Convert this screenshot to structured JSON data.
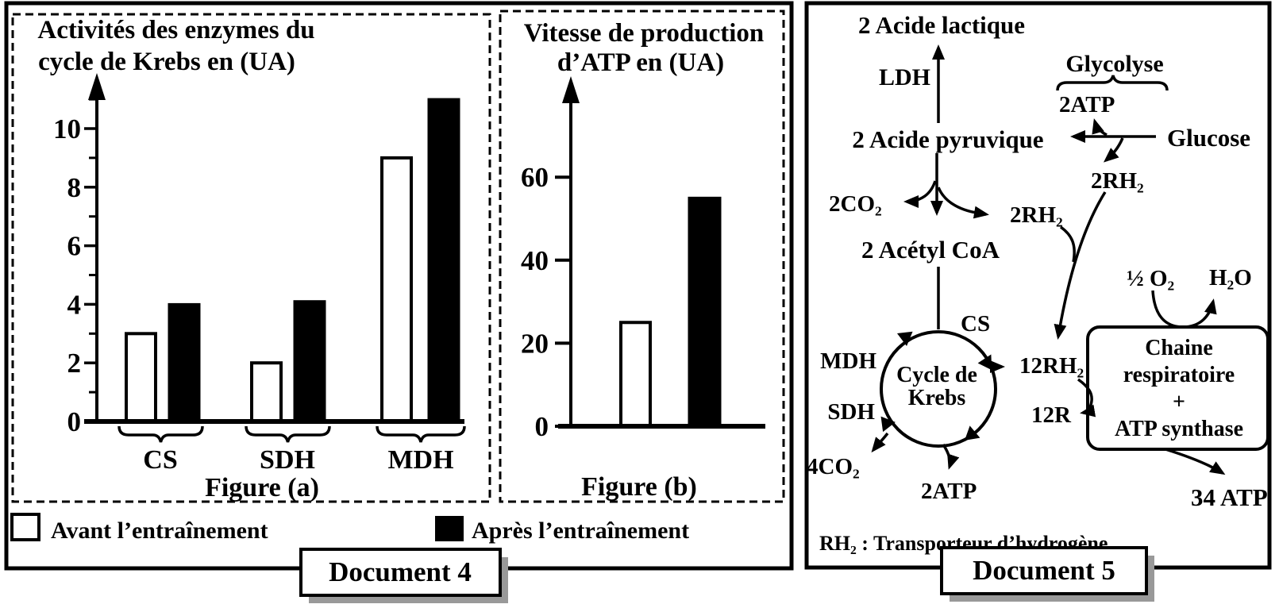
{
  "doc4": {
    "label": "Document 4",
    "legend": {
      "before": "Avant l’entraînement",
      "after": "Après l’entraînement"
    }
  },
  "chart_data": [
    {
      "id": "figure_a",
      "type": "bar",
      "title": "Activités des enzymes du cycle de Krebs en (UA)",
      "title_lines": [
        "Activités des enzymes du",
        "cycle de Krebs en (UA)"
      ],
      "caption": "Figure (a)",
      "categories": [
        "CS",
        "SDH",
        "MDH"
      ],
      "series": [
        {
          "name": "Avant l’entraînement",
          "fill": "white",
          "values": [
            3,
            2,
            9
          ]
        },
        {
          "name": "Après l’entraînement",
          "fill": "black",
          "values": [
            4,
            4.1,
            11
          ]
        }
      ],
      "ylabel": "Activités des enzymes du cycle de Krebs en (UA)",
      "ylim": [
        0,
        12
      ],
      "yticks": [
        0,
        2,
        4,
        6,
        8,
        10
      ],
      "minor_yticks": [
        1,
        3,
        5,
        7,
        9,
        11
      ],
      "grid": false,
      "legend_position": "below"
    },
    {
      "id": "figure_b",
      "type": "bar",
      "title": "Vitesse de production d’ATP en (UA)",
      "title_lines": [
        "Vitesse de production",
        "d’ATP en (UA)"
      ],
      "caption": "Figure (b)",
      "categories": [
        "Avant l’entraînement",
        "Après l’entraînement"
      ],
      "values": [
        25,
        55
      ],
      "fills": [
        "white",
        "black"
      ],
      "ylabel": "Vitesse de production d’ATP en (UA)",
      "ylim": [
        0,
        80
      ],
      "yticks": [
        0,
        20,
        40,
        60
      ],
      "grid": false
    }
  ],
  "doc5": {
    "label": "Document 5",
    "note": "RH₂ : Transporteur d’hydrogène",
    "nodes": {
      "lactate": "2 Acide lactique",
      "ldh": "LDH",
      "glycolyse": "Glycolyse",
      "atp2_glycolyse": "2ATP",
      "pyruvate": "2 Acide pyruvique",
      "glucose": "Glucose",
      "rh2_glucose": "2RH₂",
      "co2_pyruvate": "2CO₂",
      "rh2_pyruvate": "2RH₂",
      "acetyl": "2 Acétyl CoA",
      "cs": "CS",
      "mdh": "MDH",
      "sdh": "SDH",
      "cycle_line1": "Cycle de",
      "cycle_line2": "Krebs",
      "rh2_12": "12RH₂",
      "r12": "12R",
      "co2_4": "4CO₂",
      "atp2_krebs": "2ATP",
      "o2": "½ O₂",
      "h2o": "H₂O",
      "chain_line1": "Chaine",
      "chain_line2": "respiratoire",
      "chain_line3": "+",
      "chain_line4": "ATP synthase",
      "atp34": "34 ATP"
    }
  }
}
